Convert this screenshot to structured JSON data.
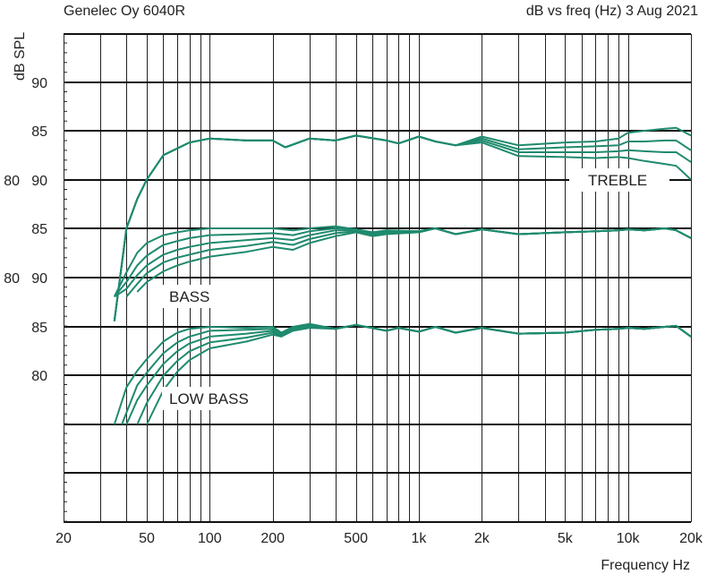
{
  "header": {
    "left": "Genelec Oy 6040R",
    "right": "dB vs freq (Hz) 3 Aug 2021"
  },
  "colors": {
    "curve": "#1f8a6e",
    "grid": "#111111"
  },
  "chart_data": {
    "type": "line",
    "ylabel": "dB SPL",
    "xlabel": "Frequency Hz",
    "xscale": "log",
    "xlim": [
      20,
      20000
    ],
    "x_ticks": [
      {
        "value": 20,
        "label": "20"
      },
      {
        "value": 50,
        "label": "50"
      },
      {
        "value": 100,
        "label": "100"
      },
      {
        "value": 200,
        "label": "200"
      },
      {
        "value": 500,
        "label": "500"
      },
      {
        "value": 1000,
        "label": "1k"
      },
      {
        "value": 2000,
        "label": "2k"
      },
      {
        "value": 5000,
        "label": "5k"
      },
      {
        "value": 10000,
        "label": "10k"
      },
      {
        "value": 20000,
        "label": "20k"
      }
    ],
    "y_ticks": [
      {
        "text": "90",
        "id": "t90",
        "major": true
      },
      {
        "text": "85",
        "id": "t85",
        "major": true
      },
      {
        "text": "90",
        "prefix": "80",
        "id": "b90",
        "major": true
      },
      {
        "text": "85",
        "id": "b85",
        "major": true
      },
      {
        "text": "90",
        "prefix": "80",
        "id": "l90",
        "major": true
      },
      {
        "text": "85",
        "id": "l85",
        "major": true
      },
      {
        "text": "80",
        "id": "l80",
        "major": true
      }
    ],
    "groups": [
      {
        "label": "TREBLE",
        "ref_db": 85,
        "curves": [
          {
            "x": [
              35,
              40,
              45,
              50,
              60,
              80,
              100,
              150,
              200,
              230,
              300,
              400,
              500,
              700,
              800,
              1000,
              1200,
              1500,
              2000,
              3000,
              5000,
              7000,
              9000,
              10000,
              12000,
              15000,
              17000,
              20000
            ],
            "y": [
              65.5,
              75,
              78,
              80,
              82.5,
              83.8,
              84.2,
              84,
              84,
              83.3,
              84.2,
              84,
              84.5,
              84,
              83.7,
              84.4,
              83.9,
              83.5,
              84.4,
              83.5,
              83.8,
              83.9,
              84.2,
              84.8,
              85,
              85.2,
              85.3,
              84.5
            ]
          },
          {
            "x": [
              35,
              40,
              45,
              50,
              60,
              80,
              100,
              150,
              200,
              230,
              300,
              400,
              500,
              700,
              800,
              1000,
              1200,
              1500,
              2000,
              3000,
              5000,
              7000,
              9000,
              10000,
              12000,
              15000,
              17000,
              20000
            ],
            "y": [
              65.5,
              75,
              78,
              80,
              82.5,
              83.8,
              84.2,
              84,
              84,
              83.3,
              84.2,
              84,
              84.5,
              84,
              83.7,
              84.4,
              83.9,
              83.5,
              84.2,
              83.1,
              83.3,
              83.4,
              83.5,
              83.9,
              83.9,
              84,
              84,
              83
            ]
          },
          {
            "x": [
              35,
              40,
              45,
              50,
              60,
              80,
              100,
              150,
              200,
              230,
              300,
              400,
              500,
              700,
              800,
              1000,
              1200,
              1500,
              2000,
              3000,
              5000,
              7000,
              9000,
              10000,
              12000,
              15000,
              17000,
              20000
            ],
            "y": [
              65.5,
              75,
              78,
              80,
              82.5,
              83.8,
              84.2,
              84,
              84,
              83.3,
              84.2,
              84,
              84.5,
              84,
              83.7,
              84.4,
              83.9,
              83.5,
              84,
              82.8,
              82.8,
              82.8,
              82.9,
              83,
              82.9,
              82.8,
              82.8,
              81.8
            ]
          },
          {
            "x": [
              35,
              40,
              45,
              50,
              60,
              80,
              100,
              150,
              200,
              230,
              300,
              400,
              500,
              700,
              800,
              1000,
              1200,
              1500,
              2000,
              3000,
              5000,
              7000,
              9000,
              10000,
              12000,
              15000,
              17000,
              20000
            ],
            "y": [
              65.5,
              75,
              78,
              80,
              82.5,
              83.8,
              84.2,
              84,
              84,
              83.3,
              84.2,
              84,
              84.5,
              84,
              83.7,
              84.4,
              83.9,
              83.5,
              83.8,
              82.4,
              82.3,
              82.2,
              82.3,
              82.2,
              81.9,
              81.6,
              81.4,
              80
            ]
          }
        ]
      },
      {
        "label": "BASS",
        "ref_db": 85,
        "curves": [
          {
            "x": [
              35,
              40,
              45,
              50,
              60,
              70,
              80,
              100,
              150,
              200,
              250,
              300,
              400,
              500,
              600,
              700,
              1000,
              1200,
              1500,
              2000,
              3000,
              5000,
              7000,
              9000,
              10000,
              12000,
              15000,
              17000,
              20000
            ],
            "y": [
              78,
              80.5,
              82.5,
              83.5,
              84.3,
              84.6,
              84.8,
              85,
              85,
              85,
              84.8,
              85,
              85.2,
              84.9,
              84.6,
              84.8,
              84.7,
              85,
              84.4,
              84.9,
              84.4,
              84.6,
              84.7,
              84.8,
              84.9,
              84.8,
              85,
              84.8,
              84
            ]
          },
          {
            "x": [
              35,
              40,
              45,
              50,
              60,
              70,
              80,
              100,
              150,
              200,
              250,
              300,
              400,
              500,
              600,
              700,
              1000,
              1200,
              1500,
              2000,
              3000,
              5000,
              7000,
              9000,
              10000,
              12000,
              15000,
              17000,
              20000
            ],
            "y": [
              78,
              79.5,
              81.2,
              82.2,
              83.3,
              83.7,
              84,
              84.3,
              84.4,
              84.5,
              84.3,
              84.7,
              85,
              84.9,
              84.5,
              84.7,
              84.7,
              85,
              84.4,
              84.9,
              84.4,
              84.6,
              84.7,
              84.8,
              84.9,
              84.8,
              85,
              84.8,
              84
            ]
          },
          {
            "x": [
              35,
              40,
              45,
              50,
              60,
              70,
              80,
              100,
              150,
              200,
              250,
              300,
              400,
              500,
              600,
              700,
              1000,
              1200,
              1500,
              2000,
              3000,
              5000,
              7000,
              9000,
              10000,
              12000,
              15000,
              17000,
              20000
            ],
            "y": [
              78,
              78.8,
              80.2,
              81.2,
              82.3,
              82.8,
              83.1,
              83.5,
              83.8,
              84,
              83.8,
              84.3,
              84.8,
              84.8,
              84.4,
              84.6,
              84.7,
              85,
              84.4,
              84.9,
              84.4,
              84.6,
              84.7,
              84.8,
              84.9,
              84.8,
              85,
              84.8,
              84
            ]
          },
          {
            "x": [
              40,
              45,
              50,
              60,
              70,
              80,
              100,
              150,
              200,
              250,
              300,
              400,
              500,
              600,
              700,
              1000,
              1200,
              1500,
              2000,
              3000,
              5000,
              7000,
              9000,
              10000,
              12000,
              15000,
              17000,
              20000
            ],
            "y": [
              78,
              79.3,
              80.4,
              81.5,
              82,
              82.3,
              82.8,
              83.2,
              83.6,
              83.3,
              83.9,
              84.5,
              84.7,
              84.3,
              84.5,
              84.6,
              85,
              84.4,
              84.9,
              84.4,
              84.6,
              84.7,
              84.8,
              84.9,
              84.8,
              85,
              84.8,
              84
            ]
          },
          {
            "x": [
              45,
              50,
              60,
              70,
              80,
              100,
              150,
              200,
              250,
              300,
              400,
              500,
              600,
              700,
              1000,
              1200,
              1500,
              2000,
              3000,
              5000,
              7000,
              9000,
              10000,
              12000,
              15000,
              17000,
              20000
            ],
            "y": [
              78.5,
              79.5,
              80.6,
              81.2,
              81.6,
              82.1,
              82.6,
              83.1,
              82.8,
              83.5,
              84.2,
              84.6,
              84.2,
              84.4,
              84.6,
              85,
              84.4,
              84.9,
              84.4,
              84.6,
              84.7,
              84.8,
              84.9,
              84.8,
              85,
              84.8,
              84
            ]
          }
        ]
      },
      {
        "label": "LOW BASS",
        "ref_db": 85,
        "curves": [
          {
            "x": [
              35,
              40,
              45,
              50,
              60,
              70,
              80,
              100,
              150,
              200,
              220,
              250,
              300,
              400,
              500,
              700,
              800,
              1000,
              1200,
              1500,
              2000,
              3000,
              5000,
              7000,
              9000,
              10000,
              12000,
              15000,
              17000,
              20000
            ],
            "y": [
              75,
              78.8,
              80.5,
              81.7,
              83.5,
              84.4,
              84.8,
              85,
              84.9,
              85,
              84.4,
              85,
              85.3,
              84.8,
              85.2,
              84.6,
              84.9,
              84.5,
              85,
              84.4,
              84.9,
              84.3,
              84.4,
              84.7,
              84.8,
              84.9,
              84.8,
              85,
              85.1,
              84
            ]
          },
          {
            "x": [
              38,
              45,
              50,
              60,
              70,
              80,
              100,
              150,
              200,
              220,
              250,
              300,
              400,
              500,
              700,
              800,
              1000,
              1200,
              1500,
              2000,
              3000,
              5000,
              7000,
              9000,
              10000,
              12000,
              15000,
              17000,
              20000
            ],
            "y": [
              75,
              79,
              80.3,
              82.3,
              83.4,
              84,
              84.6,
              84.7,
              84.8,
              84.3,
              84.9,
              85.2,
              84.8,
              85.2,
              84.6,
              84.9,
              84.5,
              85,
              84.4,
              84.9,
              84.3,
              84.4,
              84.7,
              84.8,
              84.9,
              84.8,
              85,
              85.1,
              84
            ]
          },
          {
            "x": [
              40,
              45,
              50,
              60,
              70,
              80,
              100,
              150,
              200,
              220,
              250,
              300,
              400,
              500,
              700,
              800,
              1000,
              1200,
              1500,
              2000,
              3000,
              5000,
              7000,
              9000,
              10000,
              12000,
              15000,
              17000,
              20000
            ],
            "y": [
              75,
              77.5,
              79,
              81.2,
              82.5,
              83.3,
              84,
              84.3,
              84.6,
              84.2,
              84.8,
              85.1,
              84.8,
              85.2,
              84.6,
              84.9,
              84.5,
              85,
              84.4,
              84.9,
              84.3,
              84.4,
              84.7,
              84.8,
              84.9,
              84.8,
              85,
              85.1,
              84
            ]
          },
          {
            "x": [
              45,
              50,
              60,
              70,
              80,
              100,
              150,
              200,
              220,
              250,
              300,
              400,
              500,
              700,
              800,
              1000,
              1200,
              1500,
              2000,
              3000,
              5000,
              7000,
              9000,
              10000,
              12000,
              15000,
              17000,
              20000
            ],
            "y": [
              75,
              77.2,
              80,
              81.5,
              82.5,
              83.4,
              83.9,
              84.4,
              84.1,
              84.7,
              85,
              84.8,
              85.2,
              84.6,
              84.9,
              84.5,
              85,
              84.4,
              84.9,
              84.3,
              84.4,
              84.7,
              84.8,
              84.9,
              84.8,
              85,
              85.1,
              84
            ]
          },
          {
            "x": [
              50,
              60,
              70,
              80,
              100,
              150,
              200,
              220,
              250,
              300,
              400,
              500,
              700,
              800,
              1000,
              1200,
              1500,
              2000,
              3000,
              5000,
              7000,
              9000,
              10000,
              12000,
              15000,
              17000,
              20000
            ],
            "y": [
              75,
              78.5,
              80.4,
              81.6,
              82.8,
              83.5,
              84.2,
              84,
              84.6,
              84.9,
              84.8,
              85.2,
              84.6,
              84.9,
              84.5,
              85,
              84.4,
              84.9,
              84.3,
              84.4,
              84.7,
              84.8,
              84.9,
              84.8,
              85,
              85.1,
              84
            ]
          }
        ]
      }
    ]
  }
}
